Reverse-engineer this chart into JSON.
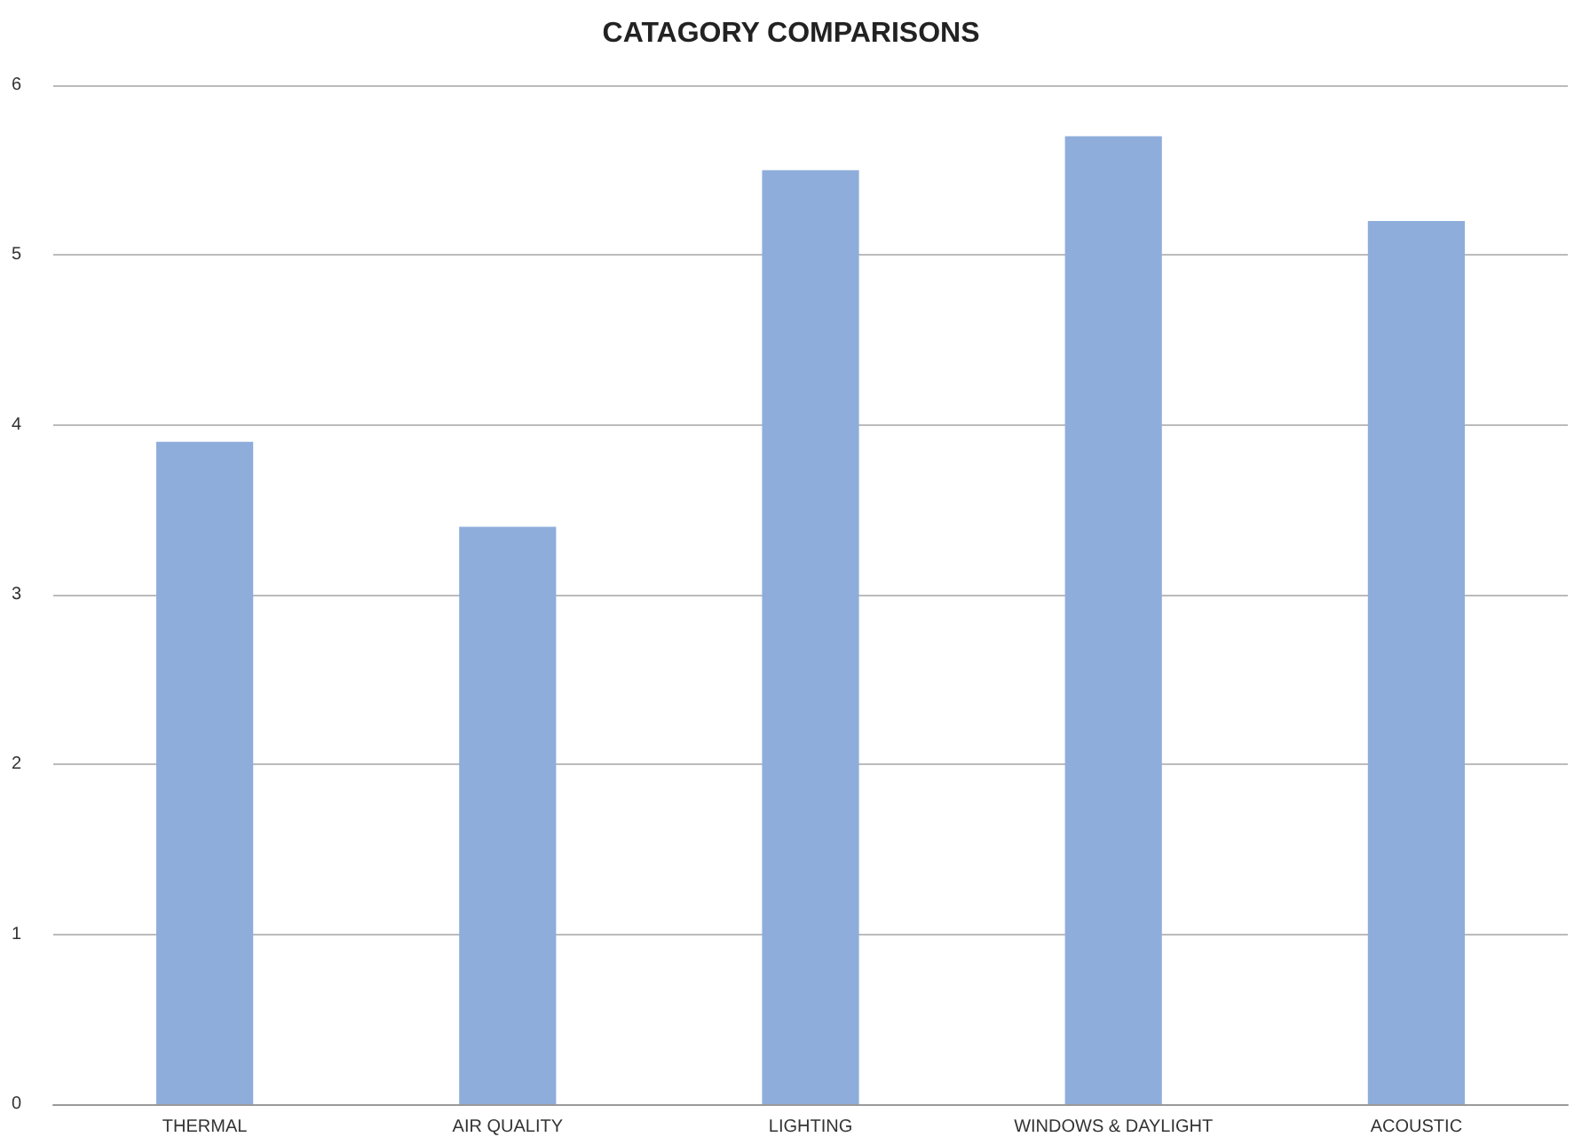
{
  "chart_data": {
    "type": "bar",
    "title": "CATAGORY COMPARISONS",
    "categories": [
      "THERMAL",
      "AIR QUALITY",
      "LIGHTING",
      "WINDOWS & DAYLIGHT",
      "ACOUSTIC"
    ],
    "values": [
      3.9,
      3.4,
      5.5,
      5.7,
      5.2
    ],
    "color": "#8eaddb",
    "ylim": [
      0,
      6
    ],
    "yticks": [
      0,
      1,
      2,
      3,
      4,
      5,
      6
    ],
    "grid": "y"
  }
}
